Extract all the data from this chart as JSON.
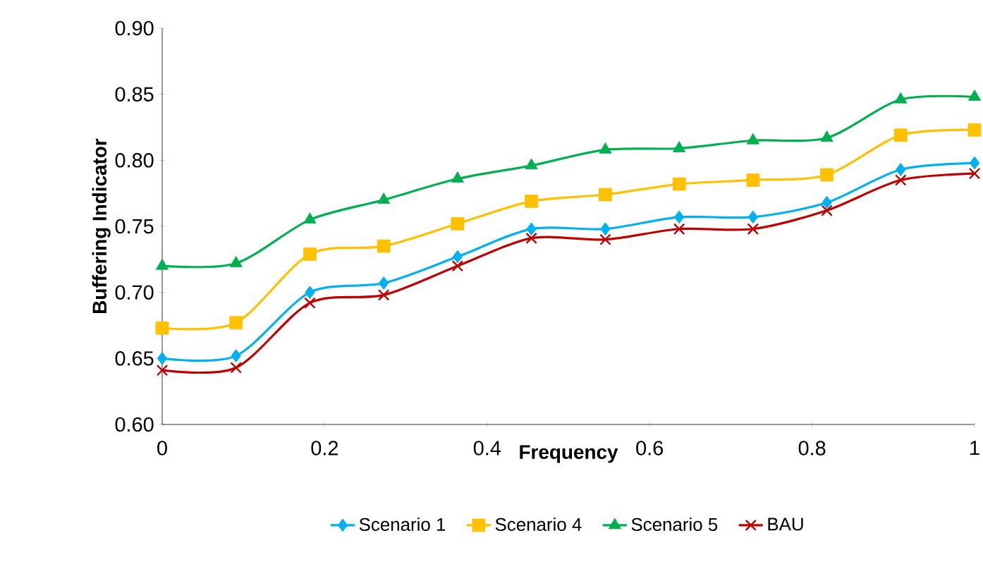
{
  "chart_data": {
    "type": "line",
    "xlabel": "Frequency",
    "ylabel": "Buffering Indicator",
    "x": [
      0,
      0.0909,
      0.1818,
      0.2727,
      0.3636,
      0.4545,
      0.5455,
      0.6364,
      0.7273,
      0.8182,
      0.9091,
      1
    ],
    "xlim": [
      0,
      1
    ],
    "xticks": [
      0,
      0.2,
      0.4,
      0.6,
      0.8,
      1
    ],
    "ylim": [
      0.6,
      0.9
    ],
    "yticks": [
      {
        "value": 0.6,
        "label": "0.60"
      },
      {
        "value": 0.65,
        "label": "0.65"
      },
      {
        "value": 0.7,
        "label": "0.70"
      },
      {
        "value": 0.75,
        "label": "0.75"
      },
      {
        "value": 0.8,
        "label": "0.80"
      },
      {
        "value": 0.85,
        "label": "0.85"
      },
      {
        "value": 0.9,
        "label": "0.90"
      }
    ],
    "grid": false,
    "legend": "bottom",
    "series": [
      {
        "name": "Scenario 1",
        "color": "#00b0f0",
        "marker": "diamond",
        "values": [
          0.65,
          0.652,
          0.7,
          0.707,
          0.727,
          0.748,
          0.748,
          0.757,
          0.757,
          0.768,
          0.793,
          0.798
        ]
      },
      {
        "name": "Scenario 4",
        "color": "#ffc000",
        "marker": "square",
        "values": [
          0.673,
          0.677,
          0.729,
          0.735,
          0.752,
          0.769,
          0.774,
          0.782,
          0.785,
          0.789,
          0.819,
          0.823
        ]
      },
      {
        "name": "Scenario 5",
        "color": "#00b050",
        "marker": "triangle",
        "values": [
          0.72,
          0.722,
          0.755,
          0.77,
          0.786,
          0.796,
          0.808,
          0.809,
          0.815,
          0.817,
          0.846,
          0.848
        ]
      },
      {
        "name": "BAU",
        "color": "#c00000",
        "marker": "cross",
        "values": [
          0.641,
          0.643,
          0.692,
          0.698,
          0.72,
          0.741,
          0.74,
          0.748,
          0.748,
          0.762,
          0.785,
          0.79
        ]
      }
    ]
  }
}
